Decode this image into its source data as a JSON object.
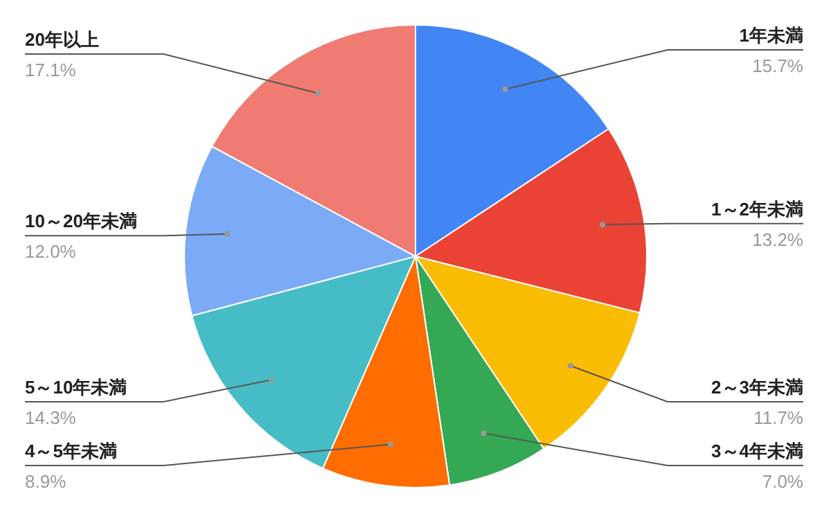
{
  "chart_data": {
    "type": "pie",
    "categories": [
      "1年未満",
      "1～2年未満",
      "2～3年未満",
      "3～4年未満",
      "4～5年未満",
      "5～10年未満",
      "10～20年未満",
      "20年以上"
    ],
    "values": [
      15.7,
      13.2,
      11.7,
      7.0,
      8.9,
      14.3,
      12.0,
      17.1
    ],
    "value_labels": [
      "15.7%",
      "13.2%",
      "11.7%",
      "7.0%",
      "8.9%",
      "14.3%",
      "12.0%",
      "17.1%"
    ],
    "colors": [
      "#4285f4",
      "#ea4335",
      "#fbbc04",
      "#34a853",
      "#ff6d01",
      "#46bdc6",
      "#7baaf7",
      "#f07b72"
    ]
  }
}
